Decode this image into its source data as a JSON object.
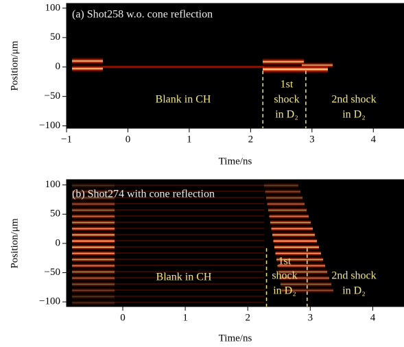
{
  "chart_data": [
    {
      "type": "image",
      "panel_label": "(a) Shot258 w.o. cone reflection",
      "xlabel": "Time/ns",
      "ylabel": "Position/μm",
      "xlim": [
        -1,
        4.5
      ],
      "ylim": [
        -104,
        108
      ],
      "xticks": [
        {
          "value": -1,
          "label": "−1"
        },
        0,
        1,
        2,
        3,
        4
      ],
      "yticks": [
        {
          "value": -100,
          "label": "−100"
        },
        {
          "value": -50,
          "label": "−50"
        },
        0,
        50,
        100
      ],
      "markers": [
        2.2,
        2.9
      ],
      "annotations": {
        "blank": "Blank in CH",
        "first": [
          "1st",
          "shock",
          "in D₂"
        ],
        "second": [
          "2nd shock",
          "in D₂"
        ]
      }
    },
    {
      "type": "image",
      "panel_label": "(b) Shot274 with cone reflection",
      "xlabel": "Time/ns",
      "ylabel": "Position/μm",
      "xlim": [
        -0.9,
        4.5
      ],
      "ylim": [
        -108,
        109
      ],
      "xticks": [
        0,
        1,
        2,
        3,
        4
      ],
      "yticks": [
        {
          "value": -100,
          "label": "−100"
        },
        {
          "value": -50,
          "label": "−50"
        },
        0,
        50,
        100
      ],
      "markers": [
        2.3,
        2.95
      ],
      "annotations": {
        "blank": "Blank in CH",
        "first": [
          "1st",
          "shock",
          "in D₂"
        ],
        "second": [
          "2nd shock",
          "in D₂"
        ]
      }
    }
  ]
}
